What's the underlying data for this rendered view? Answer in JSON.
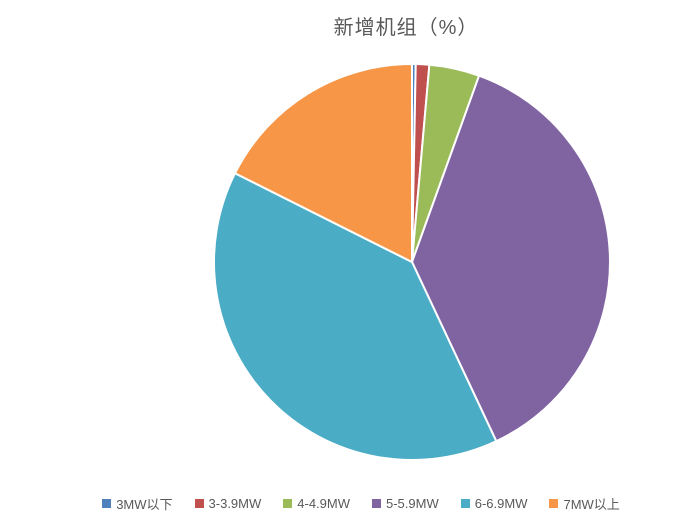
{
  "chart_title": "新增机组（%）",
  "text_colors": {
    "title": "#595959",
    "legend": "#595959"
  },
  "chart_data": {
    "type": "pie",
    "title": "新增机组（%）",
    "units": "%",
    "start_angle_deg": 0,
    "direction": "clockwise",
    "legend_position": "bottom",
    "slice_border_color": "#FFFFFF",
    "series": [
      {
        "label": "3MW以下",
        "value": 0.3,
        "color": "#4F81BD"
      },
      {
        "label": "3-3.9MW",
        "value": 1.1,
        "color": "#C0504D"
      },
      {
        "label": "4-4.9MW",
        "value": 4.1,
        "color": "#9BBB59"
      },
      {
        "label": "5-5.9MW",
        "value": 37.5,
        "color": "#8064A2"
      },
      {
        "label": "6-6.9MW",
        "value": 39.4,
        "color": "#4BACC6"
      },
      {
        "label": "7MW以上",
        "value": 17.6,
        "color": "#F79646"
      }
    ]
  }
}
